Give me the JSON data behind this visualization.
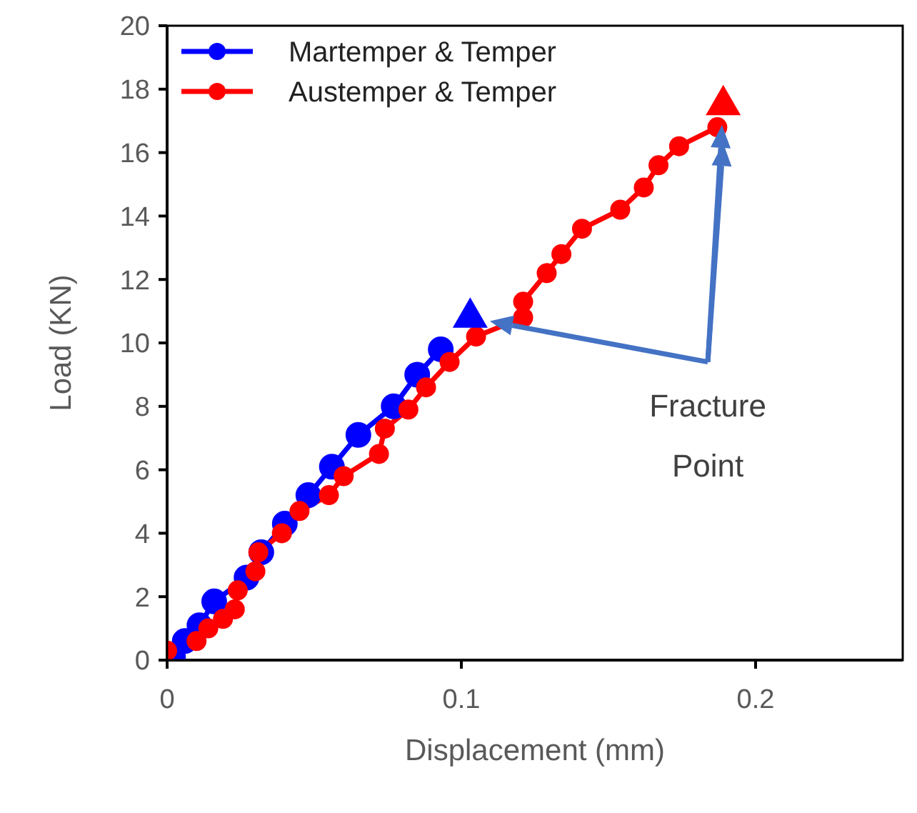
{
  "chart_data": {
    "type": "line",
    "xlabel": "Displacement (mm)",
    "ylabel": "Load (KN)",
    "xlim": [
      0,
      0.25
    ],
    "xticks": [
      0,
      0.1,
      0.2
    ],
    "ylim": [
      0,
      20
    ],
    "yticks": [
      0,
      2,
      4,
      6,
      8,
      10,
      12,
      14,
      16,
      18,
      20
    ],
    "grid": false,
    "legend": "top left",
    "marker": "circle",
    "line_style": "solid",
    "annotations": [
      {
        "text": "Fracture Point",
        "x": 0.189,
        "y": 16.3
      }
    ],
    "series": [
      {
        "name": "Martemper & Temper",
        "color": "#0000ff",
        "x": [
          0.002,
          0.006,
          0.011,
          0.016,
          0.027,
          0.032,
          0.04,
          0.048,
          0.056,
          0.065,
          0.077,
          0.085,
          0.093
        ],
        "values": [
          0.1,
          0.6,
          1.1,
          1.85,
          2.6,
          3.4,
          4.3,
          5.2,
          6.1,
          7.1,
          8.0,
          9.0,
          9.8
        ]
      },
      {
        "name": "Austemper & Temper",
        "color": "#ff0000",
        "x": [
          0,
          0.01,
          0.014,
          0.019,
          0.023,
          0.024,
          0.03,
          0.031,
          0.039,
          0.045,
          0.055,
          0.06,
          0.072,
          0.074,
          0.082,
          0.088,
          0.096,
          0.105,
          0.121,
          0.121,
          0.129,
          0.134,
          0.141,
          0.154,
          0.162,
          0.167,
          0.174,
          0.187
        ],
        "values": [
          0.3,
          0.6,
          1.0,
          1.3,
          1.6,
          2.2,
          2.8,
          3.4,
          4.0,
          4.7,
          5.2,
          5.8,
          6.5,
          7.3,
          7.9,
          8.6,
          9.4,
          10.2,
          10.8,
          11.3,
          12.2,
          12.8,
          13.6,
          14.2,
          14.9,
          15.6,
          16.2,
          16.8
        ]
      },
      {
        "type": "scatter",
        "marker": "triangle",
        "color": "#0000ff",
        "x": [
          0.103
        ],
        "values": [
          10.8
        ]
      },
      {
        "type": "scatter",
        "marker": "triangle",
        "color": "#ff0000",
        "x": [
          0.189
        ],
        "values": [
          17.5
        ]
      }
    ]
  }
}
